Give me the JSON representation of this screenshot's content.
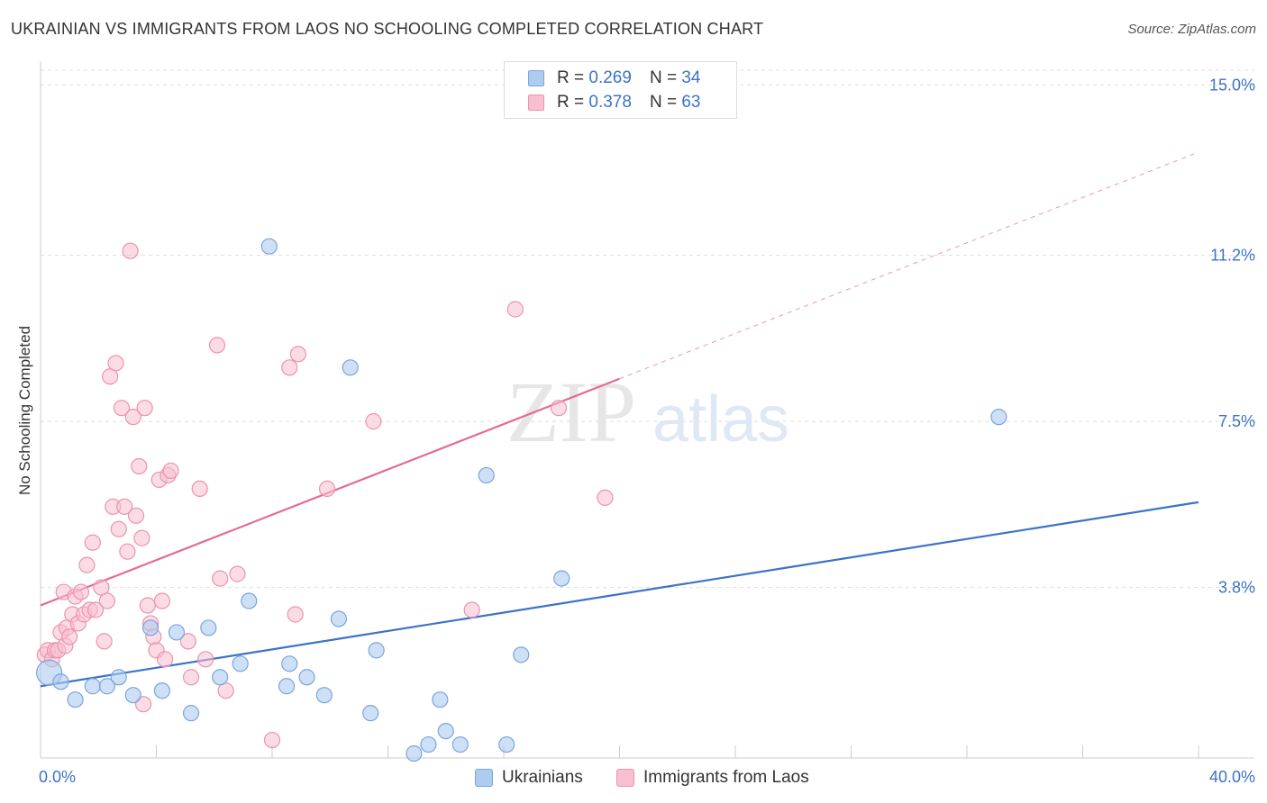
{
  "title": "UKRAINIAN VS IMMIGRANTS FROM LAOS NO SCHOOLING COMPLETED CORRELATION CHART",
  "source": "Source: ZipAtlas.com",
  "watermark": {
    "zip": "ZIP",
    "atlas": "atlas"
  },
  "legend": {
    "rows": [
      {
        "r_label": "R =",
        "r_value": "0.269",
        "n_label": "N =",
        "n_value": "34"
      },
      {
        "r_label": "R =",
        "r_value": "0.378",
        "n_label": "N =",
        "n_value": "63"
      }
    ]
  },
  "bottom_legend": {
    "series1": "Ukrainians",
    "series2": "Immigrants from Laos"
  },
  "colors": {
    "blue_fill": "#aecbf0",
    "blue_stroke": "#7aa5dc",
    "blue_line": "#3b73c6",
    "pink_fill": "#f8bfd0",
    "pink_stroke": "#ec93ae",
    "pink_line": "#e56b92",
    "axis_label": "#3b73c6",
    "grid": "#dddddd"
  },
  "chart_data": {
    "type": "scatter",
    "title": "UKRAINIAN VS IMMIGRANTS FROM LAOS NO SCHOOLING COMPLETED CORRELATION CHART",
    "xlabel": "",
    "ylabel": "No Schooling Completed",
    "xlim": [
      0,
      40
    ],
    "ylim": [
      0,
      15.7
    ],
    "x_tick_labels": [
      "0.0%",
      "40.0%"
    ],
    "y_ticks": [
      3.8,
      7.5,
      11.2,
      15.0
    ],
    "y_tick_labels": [
      "3.8%",
      "7.5%",
      "11.2%",
      "15.0%"
    ],
    "grid": true,
    "series": [
      {
        "name": "Ukrainians",
        "color": "#aecbf0",
        "points": [
          [
            0.3,
            1.9
          ],
          [
            0.7,
            1.7
          ],
          [
            1.2,
            1.3
          ],
          [
            1.8,
            1.6
          ],
          [
            2.3,
            1.6
          ],
          [
            2.7,
            1.8
          ],
          [
            3.2,
            1.4
          ],
          [
            3.8,
            2.9
          ],
          [
            4.2,
            1.5
          ],
          [
            4.7,
            2.8
          ],
          [
            5.2,
            1.0
          ],
          [
            5.8,
            2.9
          ],
          [
            6.2,
            1.8
          ],
          [
            6.9,
            2.1
          ],
          [
            7.2,
            3.5
          ],
          [
            7.9,
            11.4
          ],
          [
            8.5,
            1.6
          ],
          [
            8.6,
            2.1
          ],
          [
            9.2,
            1.8
          ],
          [
            9.8,
            1.4
          ],
          [
            10.3,
            3.1
          ],
          [
            10.7,
            8.7
          ],
          [
            11.4,
            1.0
          ],
          [
            11.6,
            2.4
          ],
          [
            12.9,
            0.1
          ],
          [
            13.4,
            0.3
          ],
          [
            13.8,
            1.3
          ],
          [
            14.0,
            0.6
          ],
          [
            14.5,
            0.3
          ],
          [
            15.4,
            6.3
          ],
          [
            16.1,
            0.3
          ],
          [
            16.6,
            2.3
          ],
          [
            18.0,
            4.0
          ],
          [
            33.1,
            7.6
          ]
        ],
        "trend": {
          "x": [
            0,
            40
          ],
          "y": [
            1.6,
            5.7
          ]
        }
      },
      {
        "name": "Immigrants from Laos",
        "color": "#f8bfd0",
        "points": [
          [
            0.15,
            2.3
          ],
          [
            0.25,
            2.4
          ],
          [
            0.4,
            2.2
          ],
          [
            0.5,
            2.4
          ],
          [
            0.6,
            2.4
          ],
          [
            0.7,
            2.8
          ],
          [
            0.8,
            3.7
          ],
          [
            0.85,
            2.5
          ],
          [
            0.9,
            2.9
          ],
          [
            1.0,
            2.7
          ],
          [
            1.1,
            3.2
          ],
          [
            1.2,
            3.6
          ],
          [
            1.3,
            3.0
          ],
          [
            1.4,
            3.7
          ],
          [
            1.5,
            3.2
          ],
          [
            1.6,
            4.3
          ],
          [
            1.7,
            3.3
          ],
          [
            1.8,
            4.8
          ],
          [
            1.9,
            3.3
          ],
          [
            2.1,
            3.8
          ],
          [
            2.2,
            2.6
          ],
          [
            2.3,
            3.5
          ],
          [
            2.4,
            8.5
          ],
          [
            2.5,
            5.6
          ],
          [
            2.6,
            8.8
          ],
          [
            2.7,
            5.1
          ],
          [
            2.8,
            7.8
          ],
          [
            2.9,
            5.6
          ],
          [
            3.0,
            4.6
          ],
          [
            3.1,
            11.3
          ],
          [
            3.2,
            7.6
          ],
          [
            3.3,
            5.4
          ],
          [
            3.4,
            6.5
          ],
          [
            3.5,
            4.9
          ],
          [
            3.55,
            1.2
          ],
          [
            3.6,
            7.8
          ],
          [
            3.7,
            3.4
          ],
          [
            3.8,
            3.0
          ],
          [
            3.9,
            2.7
          ],
          [
            4.0,
            2.4
          ],
          [
            4.1,
            6.2
          ],
          [
            4.2,
            3.5
          ],
          [
            4.3,
            2.2
          ],
          [
            4.4,
            6.3
          ],
          [
            4.5,
            6.4
          ],
          [
            5.1,
            2.6
          ],
          [
            5.2,
            1.8
          ],
          [
            5.5,
            6.0
          ],
          [
            5.7,
            2.2
          ],
          [
            6.1,
            9.2
          ],
          [
            6.2,
            4.0
          ],
          [
            6.4,
            1.5
          ],
          [
            6.8,
            4.1
          ],
          [
            8.0,
            0.4
          ],
          [
            8.6,
            8.7
          ],
          [
            8.8,
            3.2
          ],
          [
            8.9,
            9.0
          ],
          [
            9.9,
            6.0
          ],
          [
            11.5,
            7.5
          ],
          [
            14.9,
            3.3
          ],
          [
            16.4,
            10.0
          ],
          [
            17.9,
            7.8
          ],
          [
            19.5,
            5.8
          ]
        ],
        "trend": {
          "x": [
            0,
            40
          ],
          "y": [
            3.4,
            13.5
          ],
          "solid_until_x": 20
        }
      }
    ]
  }
}
